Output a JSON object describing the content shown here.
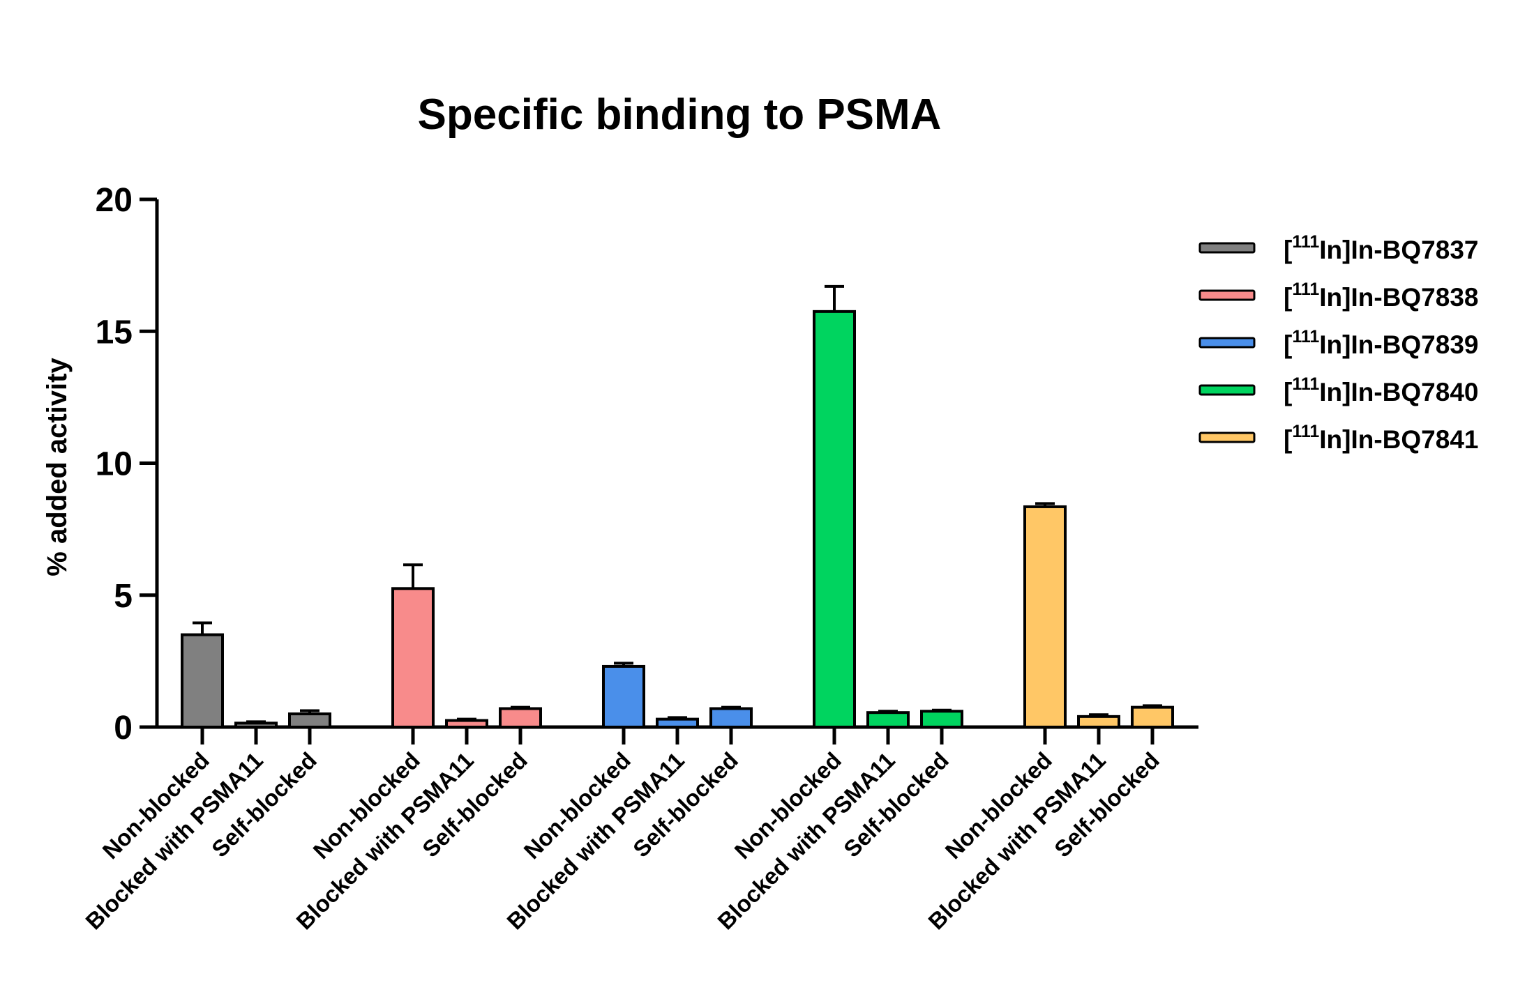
{
  "chart_data": {
    "type": "bar",
    "title": "Specific binding to PSMA",
    "xlabel": "",
    "ylabel": "% added activity",
    "ylim": [
      0,
      20
    ],
    "yticks": [
      "0",
      "5",
      "10",
      "15",
      "20"
    ],
    "categories": [
      "Non-blocked",
      "Blocked with PSMA11",
      "Self-blocked"
    ],
    "legend_position": "right",
    "grid": false,
    "series": [
      {
        "name_prefix": "[",
        "name_sup": "111",
        "name_rest": "In]In-BQ7837",
        "color": "#808080",
        "values": [
          3.5,
          0.15,
          0.5
        ],
        "errors": [
          0.45,
          0.05,
          0.12
        ]
      },
      {
        "name_prefix": "[",
        "name_sup": "111",
        "name_rest": "In]In-BQ7838",
        "color": "#F88B8B",
        "values": [
          5.25,
          0.25,
          0.7
        ],
        "errors": [
          0.9,
          0.05,
          0.05
        ]
      },
      {
        "name_prefix": "[",
        "name_sup": "111",
        "name_rest": "In]In-BQ7839",
        "color": "#4A8FEA",
        "values": [
          2.3,
          0.3,
          0.7
        ],
        "errors": [
          0.12,
          0.06,
          0.05
        ]
      },
      {
        "name_prefix": "[",
        "name_sup": "111",
        "name_rest": "In]In-BQ7840",
        "color": "#00D45F",
        "values": [
          15.75,
          0.55,
          0.6
        ],
        "errors": [
          0.95,
          0.05,
          0.04
        ]
      },
      {
        "name_prefix": "[",
        "name_sup": "111",
        "name_rest": "In]In-BQ7841",
        "color": "#FFC766",
        "values": [
          8.35,
          0.4,
          0.75
        ],
        "errors": [
          0.12,
          0.07,
          0.06
        ]
      }
    ]
  }
}
